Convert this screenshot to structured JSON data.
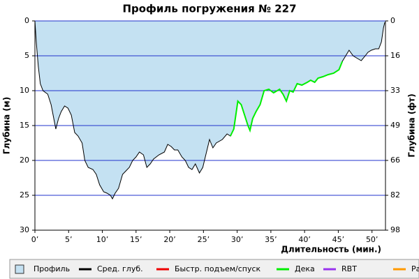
{
  "chart_data": {
    "type": "area",
    "title": "Профиль погружения № 227",
    "y_label": "Глубина (м)",
    "y2_label": "Глубина (фт)",
    "x_label": "Длительность (мин.)",
    "xlim": [
      0,
      52
    ],
    "ylim": [
      0,
      30
    ],
    "y_inverted": true,
    "y2lim": [
      0,
      98.4
    ],
    "xticks": [
      {
        "value": 0,
        "label": "0’"
      },
      {
        "value": 5,
        "label": "5’"
      },
      {
        "value": 10,
        "label": "10’"
      },
      {
        "value": 15,
        "label": "15’"
      },
      {
        "value": 20,
        "label": "20’"
      },
      {
        "value": 25,
        "label": "25’"
      },
      {
        "value": 30,
        "label": "30’"
      },
      {
        "value": 35,
        "label": "35’"
      },
      {
        "value": 40,
        "label": "40’"
      },
      {
        "value": 45,
        "label": "45’"
      },
      {
        "value": 50,
        "label": "50’"
      }
    ],
    "yticks": [
      0,
      5,
      10,
      15,
      20,
      25,
      30
    ],
    "y2ticks": [
      0,
      {
        "value": 16.4,
        "label": "16"
      },
      {
        "value": 32.8,
        "label": "33"
      },
      {
        "value": 49.2,
        "label": "49"
      },
      {
        "value": 65.6,
        "label": "66"
      },
      82,
      {
        "value": 98.4,
        "label": "98"
      }
    ],
    "grid": true,
    "x": [
      0,
      0.2,
      0.5,
      0.8,
      1.2,
      1.9,
      2.4,
      2.8,
      3.1,
      3.5,
      3.9,
      4.4,
      4.9,
      5.4,
      5.9,
      6.4,
      7.0,
      7.4,
      7.9,
      8.6,
      9.1,
      9.6,
      10.2,
      10.7,
      11.2,
      11.5,
      11.9,
      12.4,
      13.0,
      13.5,
      14.0,
      14.5,
      15.0,
      15.5,
      16.1,
      16.6,
      17.1,
      17.6,
      18.4,
      19.2,
      19.7,
      20.2,
      20.7,
      21.2,
      21.8,
      22.3,
      22.8,
      23.3,
      23.8,
      24.4,
      24.9,
      25.4,
      25.9,
      26.4,
      26.9,
      27.8,
      28.5,
      29.0,
      29.5,
      30.1,
      30.6,
      31.1,
      31.6,
      31.9,
      32.3,
      32.8,
      33.4,
      34.0,
      34.7,
      35.4,
      36.3,
      36.8,
      37.3,
      37.8,
      38.3,
      38.9,
      39.6,
      40.4,
      40.9,
      41.5,
      42.0,
      42.7,
      43.5,
      44.3,
      45.1,
      45.6,
      46.1,
      46.6,
      47.2,
      47.7,
      48.4,
      49.0,
      49.4,
      49.9,
      50.5,
      51.0,
      51.4,
      51.7,
      51.9
    ],
    "series": [
      {
        "color": "#c4e1f2",
        "values": [
          0,
          3,
          6.5,
          9,
          10,
          10.5,
          12,
          14,
          15.5,
          14,
          13,
          12.2,
          12.5,
          13.5,
          16,
          16.5,
          17.5,
          20,
          21,
          21.3,
          22,
          23.5,
          24.5,
          24.7,
          25,
          25.5,
          24.7,
          24,
          22,
          21.5,
          21,
          20,
          19.5,
          18.8,
          19.2,
          21,
          20.5,
          19.8,
          19.2,
          18.8,
          17.7,
          18,
          18.5,
          18.5,
          19.5,
          20,
          21,
          21.3,
          20.5,
          21.8,
          21,
          19,
          17,
          18.2,
          17.5,
          17,
          16.2,
          16.5,
          15.5,
          11.5,
          12,
          13.5,
          15,
          15.7,
          14,
          13,
          12,
          10,
          9.8,
          10.3,
          9.8,
          10.5,
          11.5,
          10,
          10.2,
          9,
          9.2,
          8.8,
          8.5,
          8.8,
          8.2,
          8,
          7.7,
          7.5,
          7,
          5.8,
          5,
          4.2,
          5,
          5.3,
          5.7,
          5,
          4.5,
          4.2,
          4,
          4,
          3,
          1,
          0.2
        ]
      },
      {
        "color": "#00ee00",
        "values": [
          null,
          null,
          null,
          null,
          null,
          null,
          null,
          null,
          null,
          null,
          null,
          null,
          null,
          null,
          null,
          null,
          null,
          null,
          null,
          null,
          null,
          null,
          null,
          null,
          null,
          null,
          null,
          null,
          null,
          null,
          null,
          null,
          null,
          null,
          null,
          null,
          null,
          null,
          null,
          null,
          null,
          null,
          null,
          null,
          null,
          null,
          null,
          null,
          null,
          null,
          null,
          null,
          null,
          null,
          null,
          null,
          null,
          16.5,
          15.5,
          11.5,
          12,
          13.5,
          15,
          15.7,
          14,
          13,
          12,
          10,
          9.8,
          10.3,
          9.8,
          10.5,
          11.5,
          10,
          10.2,
          9,
          9.2,
          8.8,
          8.5,
          8.8,
          8.2,
          8,
          7.7,
          7.5,
          7,
          5.8,
          null,
          null,
          null,
          null,
          null,
          null,
          null,
          null,
          null,
          null,
          null,
          null,
          null
        ]
      }
    ],
    "legend": [
      {
        "name": "Профиль",
        "color": "#c4e1f2",
        "style": "box"
      },
      {
        "name": "Сред. глуб.",
        "color": "#000000",
        "style": "line"
      },
      {
        "name": "Быстр. подъем/спуск",
        "color": "#ee0000",
        "style": "line"
      },
      {
        "name": "Дека",
        "color": "#00ee00",
        "style": "line"
      },
      {
        "name": "RBT",
        "color": "#9933ee",
        "style": "line"
      },
      {
        "name": "Раб.",
        "color": "#ff9900",
        "style": "line"
      }
    ]
  }
}
